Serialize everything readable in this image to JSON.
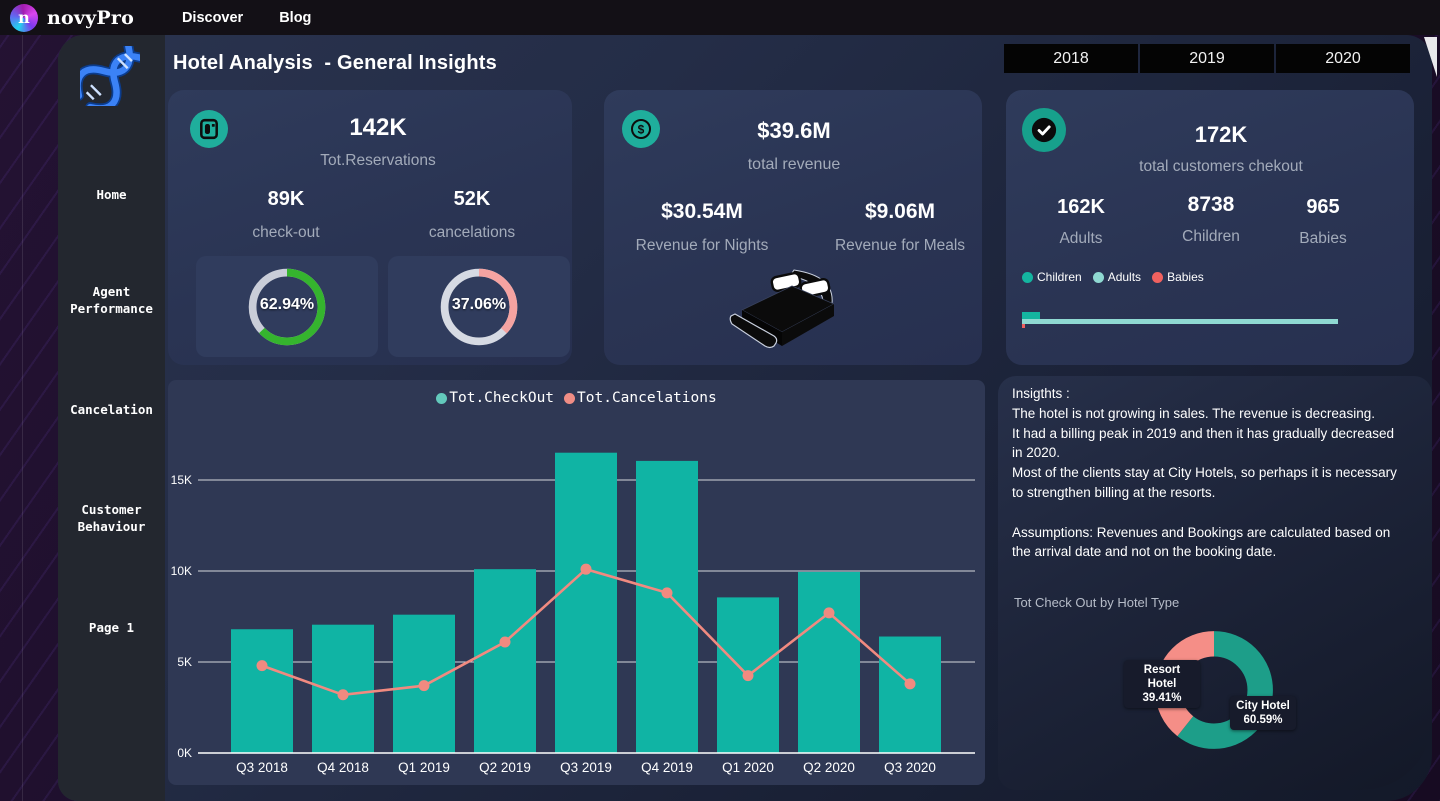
{
  "navbar": {
    "brand": "novyPro",
    "links": [
      {
        "label": "Discover"
      },
      {
        "label": "Blog"
      }
    ]
  },
  "sidebar": {
    "items": [
      "Home",
      "Agent Performance",
      "Cancelation",
      "Customer Behaviour",
      "Page 1"
    ]
  },
  "header": {
    "title": "Hotel Analysis  - General Insights",
    "year_filters": [
      "2018",
      "2019",
      "2020"
    ]
  },
  "cards": {
    "reservations": {
      "total": "142K",
      "total_label": "Tot.Reservations",
      "checkout_value": "89K",
      "checkout_label": "check-out",
      "cancel_value": "52K",
      "cancel_label": "cancelations"
    },
    "revenue": {
      "total": "$39.6M",
      "total_label": "total revenue",
      "nights_value": "$30.54M",
      "nights_label": "Revenue for Nights",
      "meals_value": "$9.06M",
      "meals_label": "Revenue for Meals"
    },
    "customers": {
      "total": "172K",
      "total_label": "total customers chekout",
      "adults_value": "162K",
      "adults_label": "Adults",
      "children_value": "8738",
      "children_label": "Children",
      "babies_value": "965",
      "babies_label": "Babies",
      "legend": [
        {
          "label": "Children",
          "color": "#14b5a0"
        },
        {
          "label": "Adults",
          "color": "#8fd9d2"
        },
        {
          "label": "Babies",
          "color": "#f0615f"
        }
      ]
    }
  },
  "insights": {
    "text": "Insigthts :\nThe hotel is not growing in sales. The revenue is decreasing.\nIt had a billing peak in 2019 and then it has gradually decreased\nin 2020.\nMost of the clients stay at City Hotels, so perhaps it is necessary\nto strengthen billing at the resorts.\n\nAssumptions: Revenues and Bookings are calculated based on\nthe arrival date and not on the booking date."
  },
  "chart_data": [
    {
      "type": "combo-bar-line",
      "categories": [
        "Q3 2018",
        "Q4 2018",
        "Q1 2019",
        "Q2 2019",
        "Q3 2019",
        "Q4 2019",
        "Q1 2020",
        "Q2 2020",
        "Q3 2020"
      ],
      "series": [
        {
          "name": "Tot.CheckOut",
          "kind": "bar",
          "color": "#10b4a4",
          "legend_color": "#63c9bc",
          "values": [
            6800,
            7050,
            7600,
            10100,
            16500,
            16050,
            8550,
            9950,
            6400
          ]
        },
        {
          "name": "Tot.Cancelations",
          "kind": "line",
          "color": "#f18a80",
          "legend_color": "#f08d85",
          "values": [
            4800,
            3200,
            3700,
            6100,
            10100,
            8800,
            4250,
            7700,
            3800
          ]
        }
      ],
      "yticks": [
        {
          "label": "0K",
          "value": 0
        },
        {
          "label": "5K",
          "value": 5000
        },
        {
          "label": "10K",
          "value": 10000
        },
        {
          "label": "15K",
          "value": 15000
        }
      ],
      "ylim": [
        0,
        17600
      ],
      "grid": true,
      "legend_position": "top"
    },
    {
      "type": "pie",
      "title": "Tot Check Out by Hotel Type",
      "slices": [
        {
          "label": "City Hotel",
          "display": "60.59%",
          "pct": 60.59,
          "color": "#1d9e89"
        },
        {
          "label": "Resort Hotel",
          "display": "39.41%",
          "pct": 39.41,
          "color": "#f58e87"
        }
      ]
    },
    {
      "type": "gauge",
      "label": "check-out ratio",
      "display": "62.94%",
      "value_pct": 62.94,
      "color": "#35b42e",
      "track": "#c9cdd8"
    },
    {
      "type": "gauge",
      "label": "cancelations ratio",
      "display": "37.06%",
      "value_pct": 37.06,
      "color": "#f5a3a1",
      "track": "#d6dae3"
    },
    {
      "type": "bar",
      "orientation": "horizontal",
      "title": "customers by type",
      "categories": [
        "Adults",
        "Children",
        "Babies"
      ],
      "values": [
        162000,
        8738,
        965
      ],
      "pct_of_max": [
        100,
        5.6,
        0.8
      ],
      "colors": [
        "#8fd9d2",
        "#14b5a0",
        "#f0615f"
      ]
    }
  ]
}
